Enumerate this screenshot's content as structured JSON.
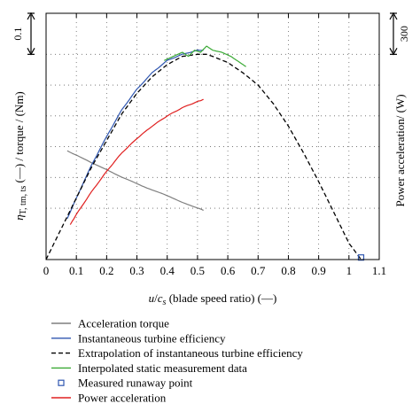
{
  "chart_data": {
    "type": "line",
    "xlabel": "u/c_s (blade speed ratio) (—)",
    "ylabel_left": "η_T,tm,ts (—) / torque / (Nm)",
    "ylabel_right": "Power acceleration/ (W)",
    "xlim": [
      0,
      1.1
    ],
    "ylim": [
      0,
      0.12
    ],
    "x_ticks": [
      "0",
      "0.1",
      "0.2",
      "0.3",
      "0.4",
      "0.5",
      "0.6",
      "0.7",
      "0.8",
      "0.9",
      "1",
      "1.1"
    ],
    "x_tick_values": [
      0,
      0.1,
      0.2,
      0.3,
      0.4,
      0.5,
      0.6,
      0.7,
      0.8,
      0.9,
      1.0,
      1.1
    ],
    "y_gridlines": [
      0.1,
      0.085,
      0.07,
      0.055,
      0.04,
      0.025
    ],
    "scale_left": {
      "label": "0.1",
      "span": [
        0.1,
        0.12
      ]
    },
    "scale_right": {
      "label": "300",
      "span": [
        0.1,
        0.12
      ]
    },
    "grid": "dotted",
    "legend_position": "bottom",
    "series": [
      {
        "name": "Acceleration torque",
        "color": "#7f7f7f",
        "style": "solid",
        "x": [
          0.07,
          0.1,
          0.15,
          0.2,
          0.25,
          0.3,
          0.35,
          0.4,
          0.45,
          0.5,
          0.52
        ],
        "y": [
          0.053,
          0.051,
          0.047,
          0.044,
          0.04,
          0.037,
          0.034,
          0.031,
          0.028,
          0.025,
          0.024
        ]
      },
      {
        "name": "Instantaneous turbine efficiency",
        "color": "#2f56b0",
        "style": "solid",
        "x": [
          0.07,
          0.1,
          0.15,
          0.2,
          0.25,
          0.3,
          0.35,
          0.4,
          0.45,
          0.5,
          0.52
        ],
        "y": [
          0.02,
          0.03,
          0.046,
          0.06,
          0.073,
          0.083,
          0.091,
          0.097,
          0.1,
          0.102,
          0.102
        ]
      },
      {
        "name": "Extrapolation of instantaneous turbine efficiency",
        "color": "#000000",
        "style": "dashed",
        "x": [
          0.0,
          0.05,
          0.1,
          0.15,
          0.2,
          0.25,
          0.3,
          0.35,
          0.4,
          0.45,
          0.5,
          0.53,
          0.55,
          0.6,
          0.65,
          0.7,
          0.75,
          0.8,
          0.85,
          0.9,
          0.95,
          1.0,
          1.04
        ],
        "y": [
          0.0,
          0.015,
          0.03,
          0.045,
          0.058,
          0.071,
          0.081,
          0.089,
          0.095,
          0.099,
          0.1,
          0.1,
          0.099,
          0.096,
          0.091,
          0.085,
          0.076,
          0.065,
          0.052,
          0.038,
          0.023,
          0.008,
          0.0
        ]
      },
      {
        "name": "Interpolated static measurement data",
        "color": "#3aaa35",
        "style": "solid",
        "x": [
          0.39,
          0.42,
          0.45,
          0.47,
          0.49,
          0.51,
          0.53,
          0.55,
          0.58,
          0.61,
          0.64,
          0.66
        ],
        "y": [
          0.097,
          0.099,
          0.101,
          0.099,
          0.102,
          0.101,
          0.104,
          0.102,
          0.101,
          0.099,
          0.096,
          0.094
        ]
      },
      {
        "name": "Measured runaway point",
        "color": "#2f56b0",
        "style": "marker",
        "x": [
          1.04
        ],
        "y": [
          0.001
        ]
      },
      {
        "name": "Power acceleration",
        "color": "#e02020",
        "style": "solid",
        "x": [
          0.08,
          0.1,
          0.15,
          0.2,
          0.25,
          0.3,
          0.35,
          0.4,
          0.45,
          0.5,
          0.52
        ],
        "y": [
          0.017,
          0.022,
          0.033,
          0.043,
          0.052,
          0.059,
          0.065,
          0.07,
          0.074,
          0.077,
          0.078
        ]
      }
    ]
  }
}
